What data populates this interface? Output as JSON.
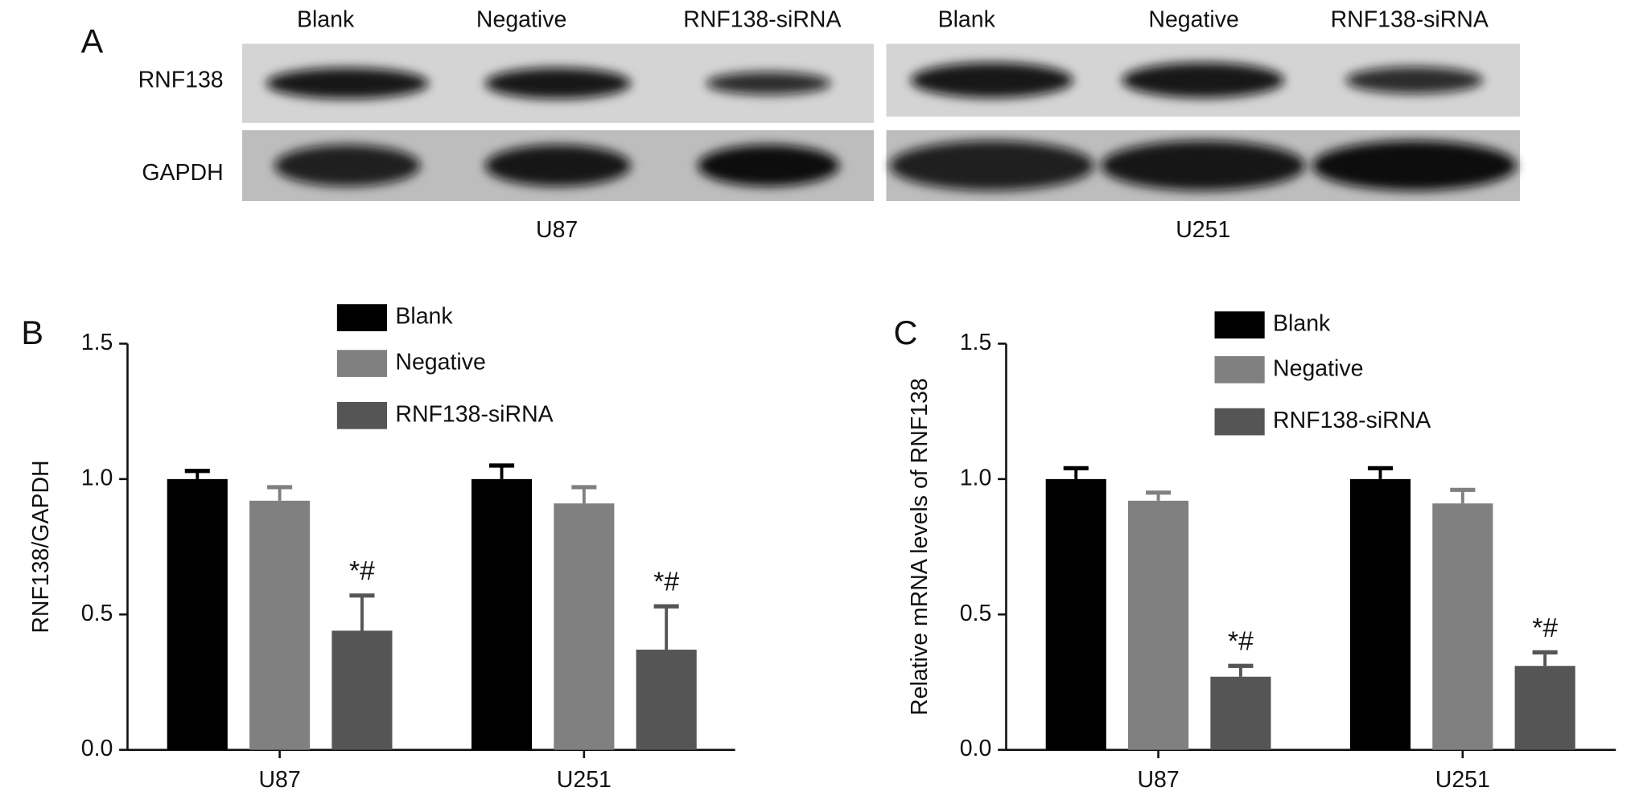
{
  "blot": {
    "panel_label": "A",
    "row_labels": [
      "RNF138",
      "GAPDH"
    ],
    "blots": [
      {
        "cell_line": "U87",
        "lanes": [
          "Blank",
          "Negative",
          "RNF138-siRNA"
        ]
      },
      {
        "cell_line": "U251",
        "lanes": [
          "Blank",
          "Negative",
          "RNF138-siRNA"
        ]
      }
    ]
  },
  "chart_data": [
    {
      "type": "bar",
      "panel_label": "B",
      "y_label": "RNF138/GAPDH",
      "categories": [
        "U87",
        "U251"
      ],
      "ylim": [
        0,
        1.5
      ],
      "yticks": [
        {
          "value": 0,
          "label": "0.0"
        },
        0.5,
        {
          "value": 1,
          "label": "1.0"
        },
        1.5
      ],
      "series": [
        {
          "name": "Blank",
          "color": "#000000",
          "values": [
            1.0,
            1.0
          ],
          "errors": [
            0.03,
            0.05
          ]
        },
        {
          "name": "Negative",
          "color": "#808080",
          "values": [
            0.92,
            0.91
          ],
          "errors": [
            0.05,
            0.06
          ]
        },
        {
          "name": "RNF138-siRNA",
          "color": "#555555",
          "values": [
            0.44,
            0.37
          ],
          "errors": [
            0.13,
            0.16
          ],
          "annotations": [
            "*#",
            "*#"
          ]
        }
      ]
    },
    {
      "type": "bar",
      "panel_label": "C",
      "y_label": "Relative mRNA levels of RNF138",
      "categories": [
        "U87",
        "U251"
      ],
      "ylim": [
        0,
        1.5
      ],
      "yticks": [
        {
          "value": 0,
          "label": "0.0"
        },
        0.5,
        {
          "value": 1,
          "label": "1.0"
        },
        1.5
      ],
      "series": [
        {
          "name": "Blank",
          "color": "#000000",
          "values": [
            1.0,
            1.0
          ],
          "errors": [
            0.04,
            0.04
          ]
        },
        {
          "name": "Negative",
          "color": "#808080",
          "values": [
            0.92,
            0.91
          ],
          "errors": [
            0.03,
            0.05
          ]
        },
        {
          "name": "RNF138-siRNA",
          "color": "#555555",
          "values": [
            0.27,
            0.31
          ],
          "errors": [
            0.04,
            0.05
          ],
          "annotations": [
            "*#",
            "*#"
          ]
        }
      ]
    }
  ]
}
